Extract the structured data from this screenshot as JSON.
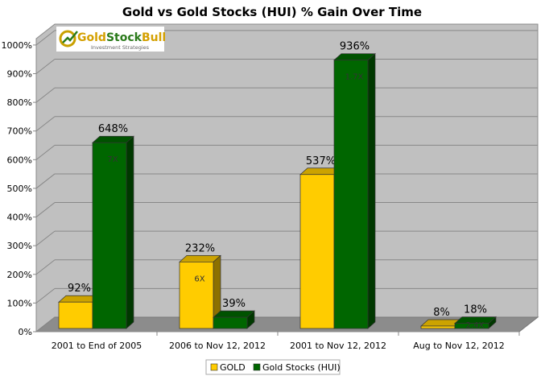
{
  "chart_data": {
    "type": "bar",
    "title": "Gold vs Gold Stocks (HUI) % Gain Over Time",
    "xlabel": "",
    "ylabel": "",
    "ylim": [
      0,
      1000
    ],
    "yticks": [
      "0%",
      "100%",
      "200%",
      "300%",
      "400%",
      "500%",
      "600%",
      "700%",
      "800%",
      "900%",
      "1000%"
    ],
    "categories": [
      "2001 to End of 2005",
      "2006 to Nov 12, 2012",
      "2001 to Nov 12, 2012",
      "Aug to Nov 12, 2012"
    ],
    "series": [
      {
        "name": "GOLD",
        "color": "#ffcc00",
        "values": [
          92,
          232,
          537,
          8
        ],
        "labels": [
          "92%",
          "232%",
          "537%",
          "8%"
        ],
        "inner_labels": [
          "",
          "6X",
          "",
          ""
        ]
      },
      {
        "name": "Gold Stocks (HUI)",
        "color": "#006600",
        "values": [
          648,
          39,
          936,
          18
        ],
        "labels": [
          "648%",
          "39%",
          "936%",
          "18%"
        ],
        "inner_labels": [
          "7X",
          "",
          "1.7X",
          "2.4X"
        ]
      }
    ],
    "grid": true,
    "legend": "bottom",
    "logo": {
      "name": "GoldStockBull",
      "tagline": "Investment Strategies"
    }
  }
}
